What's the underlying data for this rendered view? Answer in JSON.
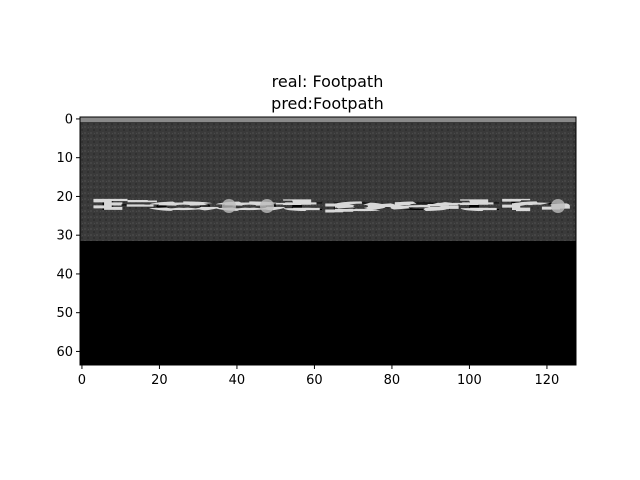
{
  "chart_data": {
    "type": "image",
    "title_lines": [
      "real: Footpath",
      "pred:Footpath"
    ],
    "image_text": "Footpath",
    "x_ticks": [
      0,
      20,
      40,
      60,
      80,
      100,
      120
    ],
    "y_ticks": [
      0,
      10,
      20,
      30,
      40,
      50,
      60
    ],
    "xlim": [
      -0.5,
      127.5
    ],
    "ylim": [
      63.5,
      -0.5
    ],
    "text_band_rows": [
      0,
      31
    ],
    "text_band_color": "#3a3a3a",
    "background_color": "#000000",
    "grid": false
  }
}
